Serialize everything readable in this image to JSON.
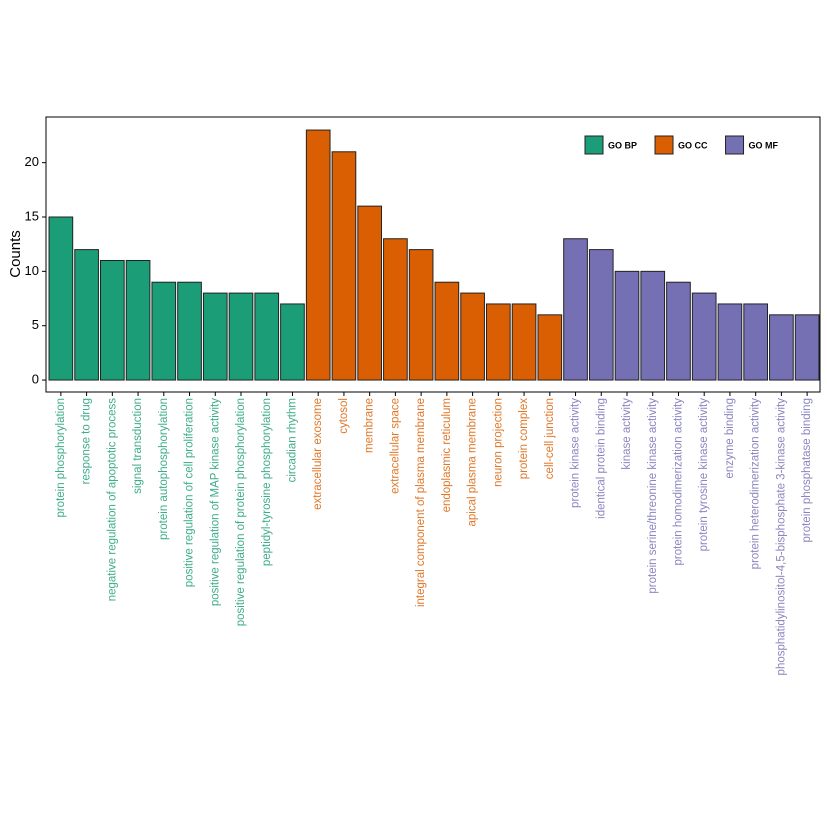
{
  "chart_data": {
    "type": "bar",
    "y_label": "Counts",
    "categories": [
      "protein phosphorylation",
      "response to drug",
      "negative regulation of apoptotic process",
      "signal transduction",
      "protein autophosphorylation",
      "positive regulation of cell proliferation",
      "positive regulation of MAP kinase activity",
      "positive regulation of protein phosphorylation",
      "peptidyl-tyrosine phosphorylation",
      "circadian rhythm",
      "extracellular exosome",
      "cytosol",
      "membrane",
      "extracellular space",
      "integral component of plasma membrane",
      "endoplasmic reticulum",
      "apical plasma membrane",
      "neuron projection",
      "protein complex",
      "cell-cell junction",
      "protein kinase activity",
      "identical protein binding",
      "kinase activity",
      "protein serine/threonine kinase activity",
      "protein homodimerization activity",
      "protein tyrosine kinase activity",
      "enzyme binding",
      "protein heterodimerization activity",
      "phosphatidylinositol-4,5-bisphosphate 3-kinase activity",
      "protein phosphatase binding"
    ],
    "series": [
      {
        "name": "GO BP",
        "color": "#1b9e77",
        "values": [
          15,
          12,
          11,
          11,
          9,
          9,
          8,
          8,
          8,
          7,
          null,
          null,
          null,
          null,
          null,
          null,
          null,
          null,
          null,
          null,
          null,
          null,
          null,
          null,
          null,
          null,
          null,
          null,
          null,
          null
        ]
      },
      {
        "name": "GO CC",
        "color": "#d95f02",
        "values": [
          null,
          null,
          null,
          null,
          null,
          null,
          null,
          null,
          null,
          null,
          23,
          21,
          16,
          13,
          12,
          9,
          8,
          7,
          7,
          6,
          null,
          null,
          null,
          null,
          null,
          null,
          null,
          null,
          null,
          null
        ]
      },
      {
        "name": "GO MF",
        "color": "#7570b3",
        "values": [
          null,
          null,
          null,
          null,
          null,
          null,
          null,
          null,
          null,
          null,
          null,
          null,
          null,
          null,
          null,
          null,
          null,
          null,
          null,
          null,
          13,
          12,
          10,
          10,
          9,
          8,
          7,
          7,
          6,
          6
        ]
      }
    ],
    "ylim": [
      -1.1,
      24.2
    ],
    "yticks": [
      0,
      5,
      10,
      15,
      20
    ],
    "legend": "top-right"
  }
}
